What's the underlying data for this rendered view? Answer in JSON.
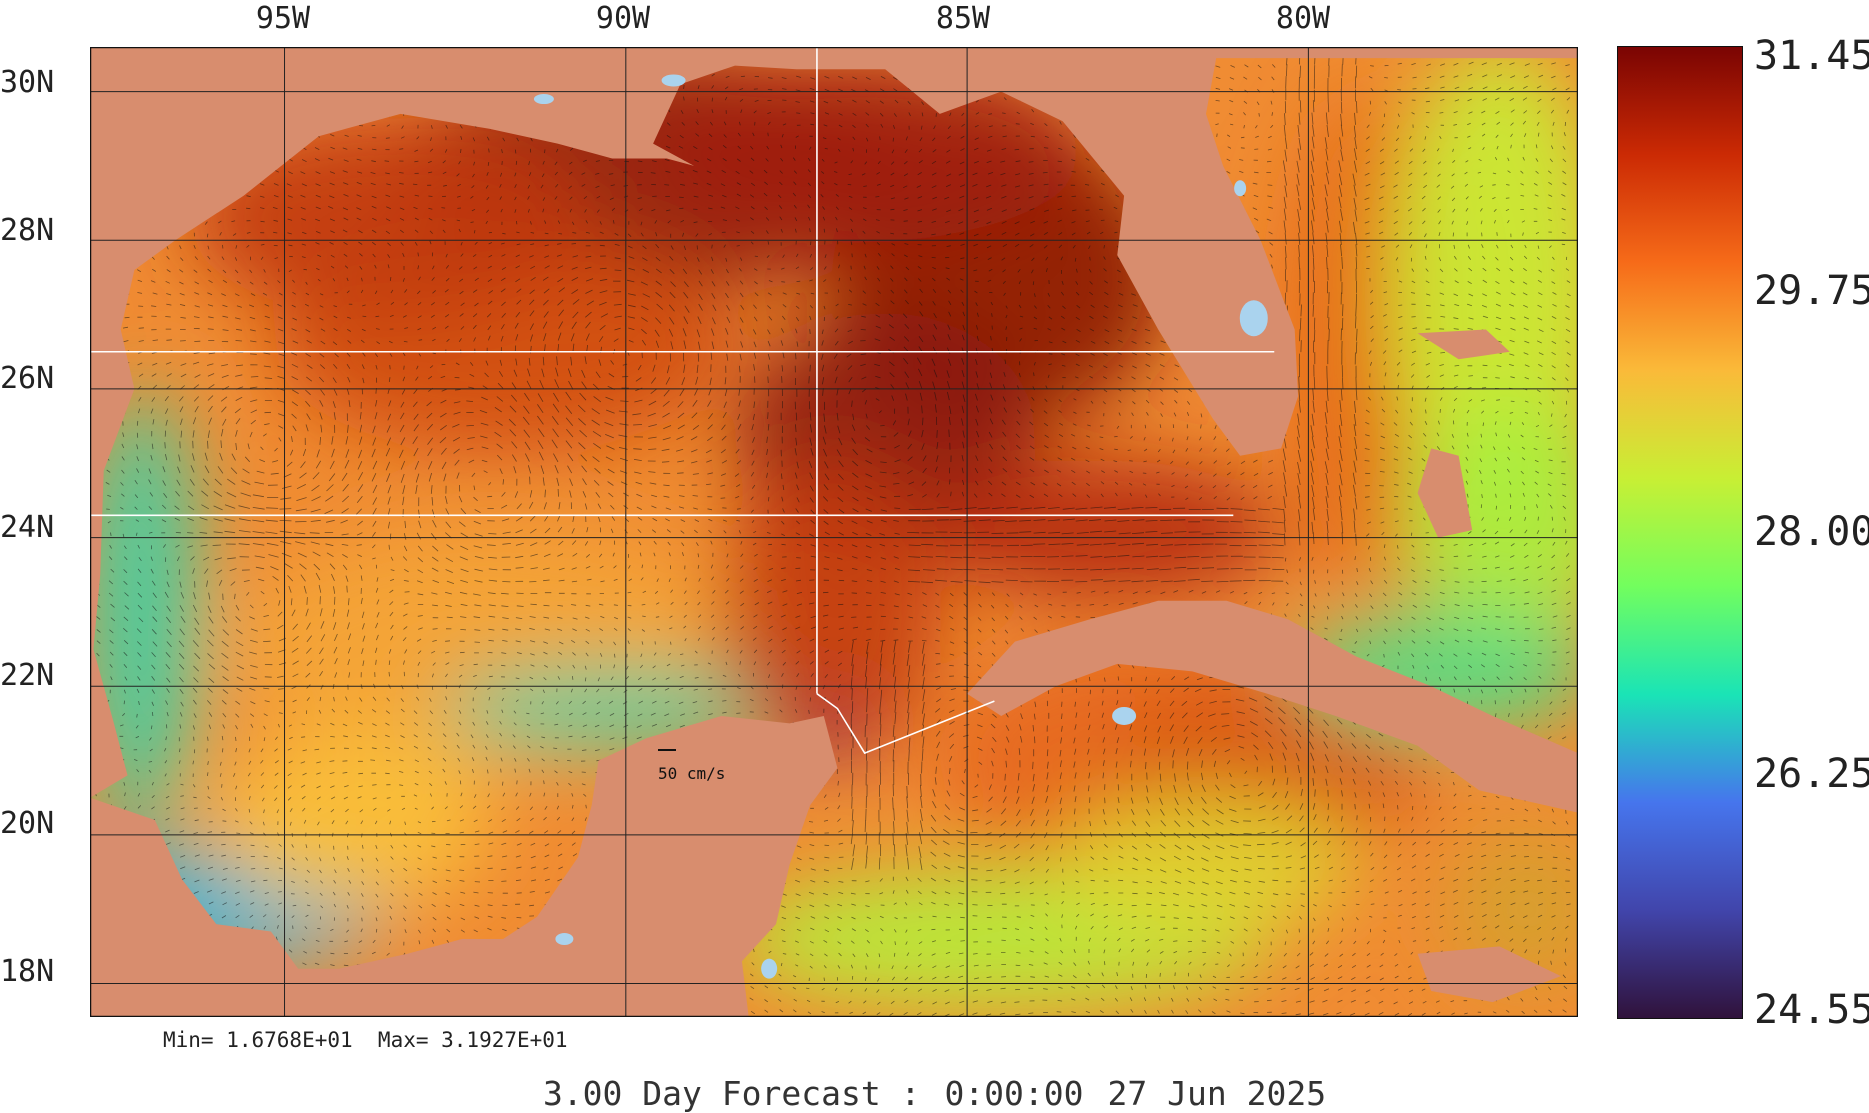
{
  "map": {
    "name": "Gulf of Mexico sea surface temperature and surface currents",
    "lon_ticks": [
      {
        "value": -95,
        "label": "95W"
      },
      {
        "value": -90,
        "label": "90W"
      },
      {
        "value": -85,
        "label": "85W"
      },
      {
        "value": -80,
        "label": "80W"
      }
    ],
    "lat_ticks": [
      {
        "value": 30,
        "label": "30N"
      },
      {
        "value": 28,
        "label": "28N"
      },
      {
        "value": 26,
        "label": "26N"
      },
      {
        "value": 24,
        "label": "24N"
      },
      {
        "value": 22,
        "label": "22N"
      },
      {
        "value": 20,
        "label": "20N"
      },
      {
        "value": 18,
        "label": "18N"
      }
    ],
    "extent": {
      "lon_min": -97.85,
      "lon_max": -76.05,
      "lat_min": 17.55,
      "lat_max": 30.6
    },
    "grid": true,
    "land_color": "#d88d6e",
    "lake_color": "#aad3ee",
    "current_vector_color": "#111111",
    "scale_vector_label": "50 cm/s"
  },
  "colorbar": {
    "min": 24.55,
    "max": 31.45,
    "tick_labels": [
      "31.45",
      "29.75",
      "28.00",
      "26.25",
      "24.55"
    ],
    "tick_values": [
      31.45,
      29.75,
      28.0,
      26.25,
      24.55
    ],
    "colormap": [
      "#30123b",
      "#4145ab",
      "#4675ed",
      "#1ae4b6",
      "#72fe5e",
      "#c8ef34",
      "#faba39",
      "#f66b19",
      "#cb2a04",
      "#7a0403"
    ]
  },
  "stats": {
    "text": "Min= 1.6768E+01  Max= 3.1927E+01"
  },
  "footer": {
    "forecast": "3.00 Day Forecast :",
    "time": "0:00:00",
    "date": "27 Jun 2025"
  }
}
